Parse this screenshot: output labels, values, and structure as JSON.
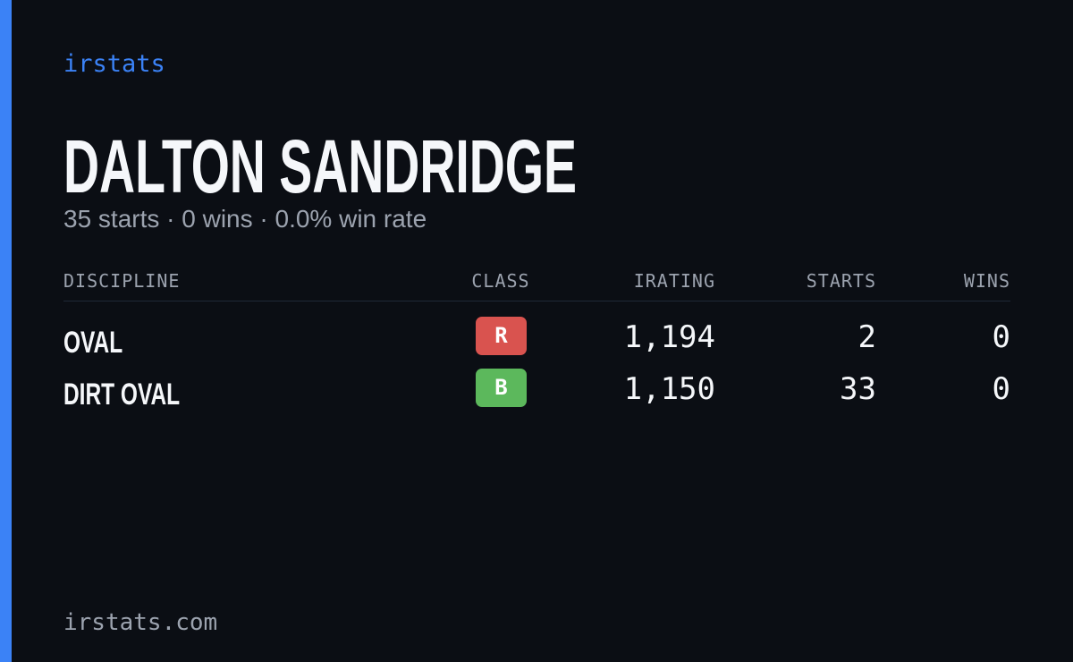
{
  "header": {
    "brand": "irstats",
    "name": "DALTON SANDRIDGE",
    "subtitle": "35 starts · 0 wins · 0.0% win rate"
  },
  "table": {
    "headers": [
      "DISCIPLINE",
      "CLASS",
      "IRATING",
      "STARTS",
      "WINS"
    ],
    "rows": [
      [
        "OVAL",
        "R",
        "1,194",
        "2",
        "0"
      ],
      [
        "DIRT OVAL",
        "B",
        "1,150",
        "33",
        "0"
      ]
    ]
  },
  "footer": {
    "url": "irstats.com"
  }
}
